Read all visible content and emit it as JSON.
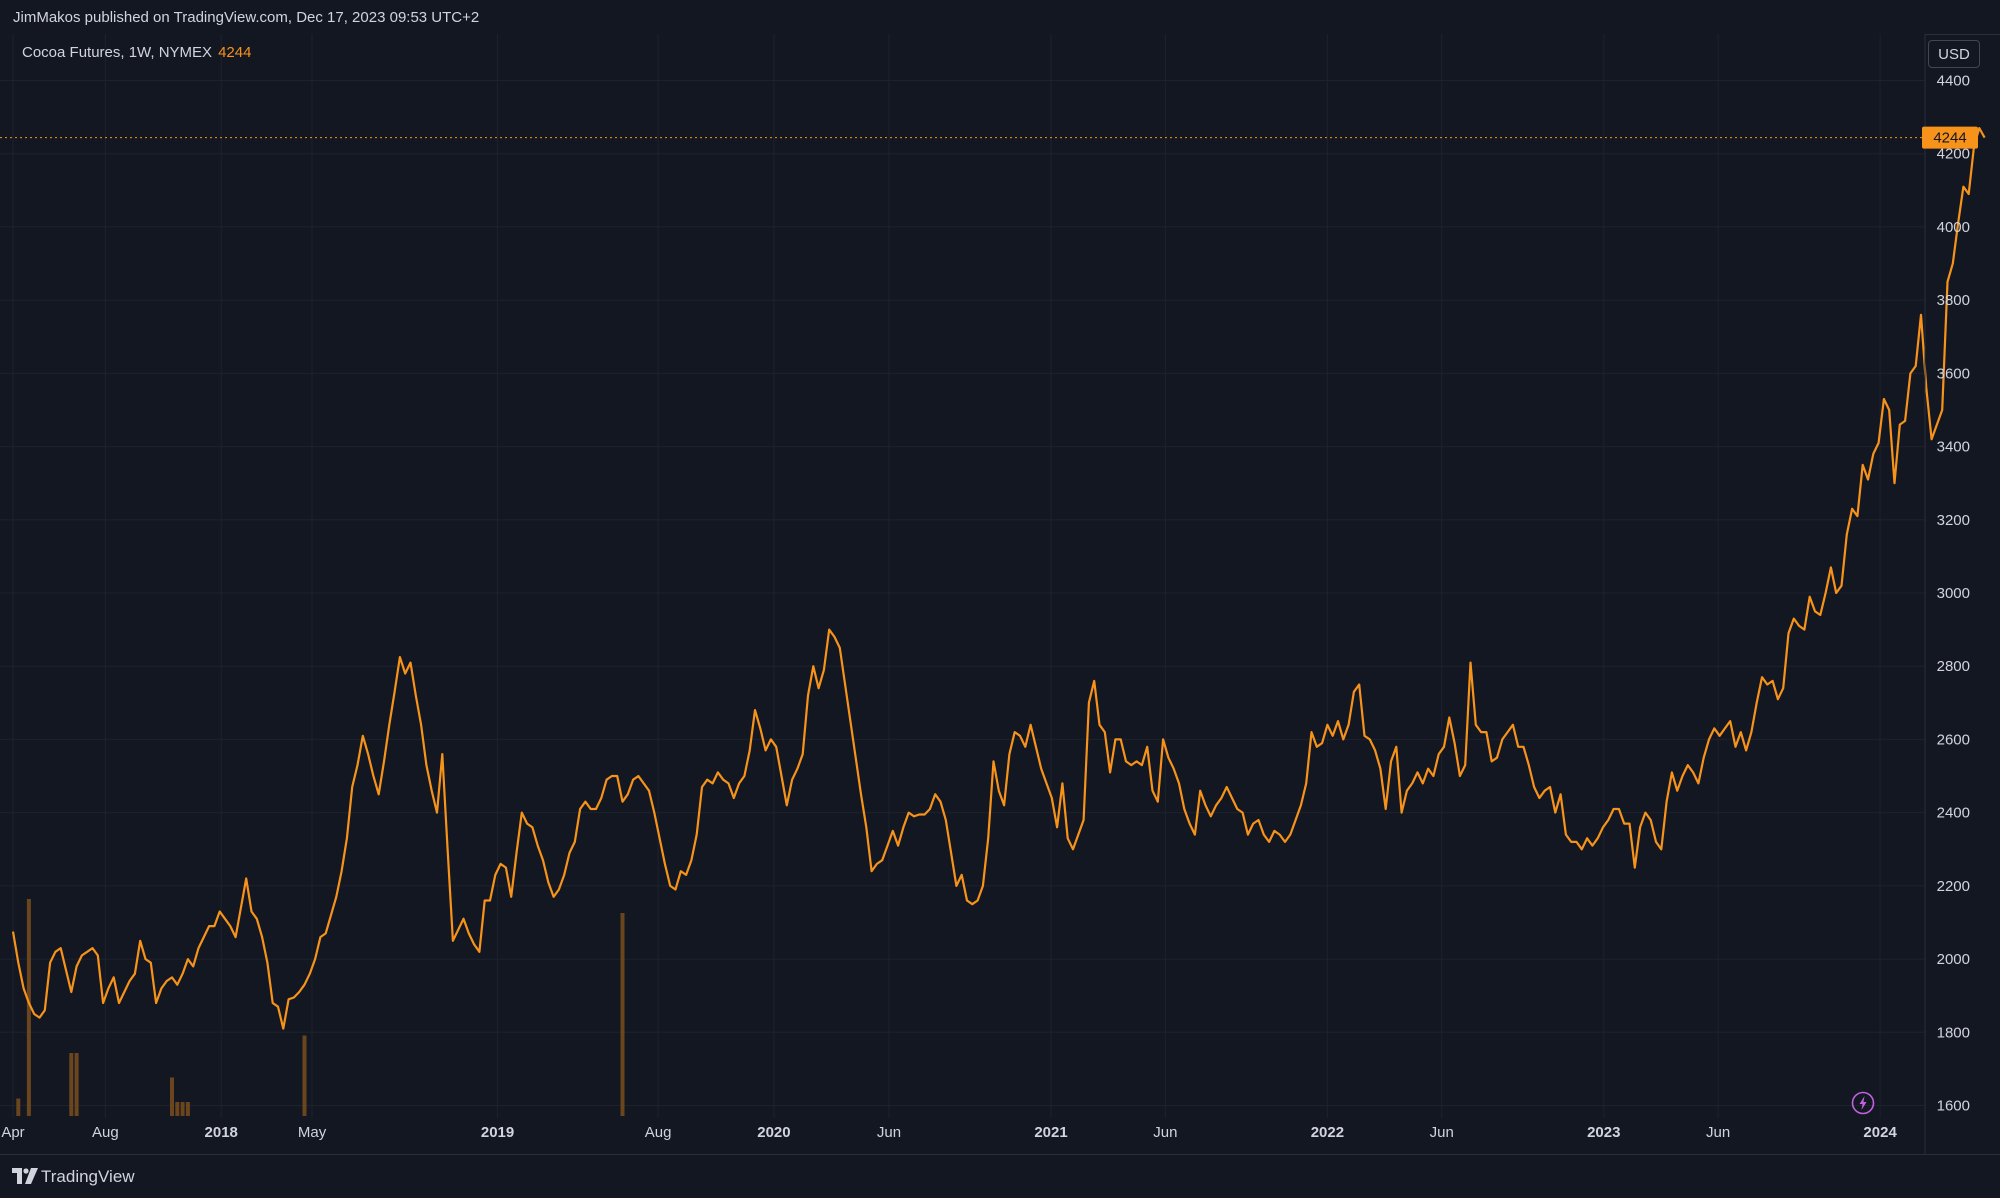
{
  "header": {
    "publish_text": "JimMakos published on TradingView.com, Dec 17, 2023 09:53 UTC+2"
  },
  "legend": {
    "symbol": "Cocoa Futures, 1W, NYMEX",
    "last_price": "4244"
  },
  "currency": "USD",
  "footer": {
    "brand": "TradingView",
    "logo_icon": "tradingview-logo-icon"
  },
  "icons": {
    "bolt": "lightning-bolt-icon"
  },
  "colors": {
    "background": "#131722",
    "grid": "#1e222d",
    "line": "#f7931a",
    "price_tag": "#f7931a",
    "text": "#d1d4dc",
    "volume": "#7a4e1c",
    "bolt": "#c061e0"
  },
  "chart_data": {
    "type": "line",
    "series": [
      {
        "name": "Cocoa Futures, 1W, NYMEX",
        "x_start": "2017-04-01",
        "interval": "1W",
        "values": [
          2075,
          1990,
          1920,
          1880,
          1850,
          1840,
          1860,
          1990,
          2020,
          2030,
          1970,
          1910,
          1980,
          2010,
          2020,
          2030,
          2010,
          1880,
          1920,
          1950,
          1880,
          1910,
          1940,
          1960,
          2050,
          2000,
          1990,
          1880,
          1920,
          1940,
          1950,
          1930,
          1960,
          2000,
          1980,
          2030,
          2060,
          2090,
          2090,
          2130,
          2110,
          2090,
          2060,
          2140,
          2220,
          2130,
          2110,
          2060,
          1990,
          1880,
          1870,
          1810,
          1890,
          1895,
          1910,
          1930,
          1960,
          2000,
          2060,
          2070,
          2120,
          2170,
          2240,
          2330,
          2470,
          2530,
          2610,
          2560,
          2500,
          2450,
          2540,
          2640,
          2730,
          2825,
          2780,
          2810,
          2720,
          2640,
          2530,
          2460,
          2400,
          2560,
          2300,
          2050,
          2080,
          2110,
          2070,
          2040,
          2020,
          2160,
          2160,
          2230,
          2260,
          2250,
          2170,
          2290,
          2400,
          2370,
          2360,
          2310,
          2270,
          2210,
          2170,
          2190,
          2230,
          2290,
          2320,
          2410,
          2430,
          2410,
          2410,
          2440,
          2490,
          2500,
          2500,
          2430,
          2450,
          2490,
          2500,
          2480,
          2460,
          2400,
          2330,
          2260,
          2200,
          2190,
          2240,
          2230,
          2270,
          2340,
          2470,
          2490,
          2480,
          2510,
          2490,
          2480,
          2440,
          2480,
          2500,
          2570,
          2680,
          2630,
          2570,
          2600,
          2580,
          2500,
          2420,
          2490,
          2520,
          2560,
          2720,
          2800,
          2740,
          2790,
          2900,
          2880,
          2850,
          2750,
          2650,
          2550,
          2450,
          2360,
          2240,
          2260,
          2270,
          2310,
          2350,
          2310,
          2360,
          2400,
          2390,
          2395,
          2395,
          2410,
          2450,
          2430,
          2380,
          2290,
          2200,
          2230,
          2160,
          2150,
          2160,
          2200,
          2330,
          2540,
          2460,
          2420,
          2560,
          2620,
          2610,
          2580,
          2640,
          2580,
          2520,
          2480,
          2440,
          2360,
          2480,
          2330,
          2300,
          2340,
          2380,
          2700,
          2760,
          2640,
          2620,
          2510,
          2600,
          2600,
          2540,
          2530,
          2540,
          2530,
          2580,
          2460,
          2430,
          2600,
          2550,
          2520,
          2480,
          2410,
          2370,
          2340,
          2460,
          2420,
          2390,
          2420,
          2440,
          2470,
          2440,
          2410,
          2400,
          2340,
          2370,
          2380,
          2340,
          2320,
          2350,
          2340,
          2320,
          2340,
          2380,
          2420,
          2480,
          2620,
          2580,
          2590,
          2640,
          2610,
          2650,
          2600,
          2640,
          2730,
          2750,
          2610,
          2600,
          2570,
          2520,
          2410,
          2540,
          2580,
          2400,
          2460,
          2480,
          2510,
          2480,
          2520,
          2500,
          2560,
          2580,
          2660,
          2590,
          2500,
          2530,
          2810,
          2640,
          2620,
          2620,
          2540,
          2550,
          2600,
          2620,
          2640,
          2580,
          2580,
          2530,
          2470,
          2440,
          2460,
          2470,
          2400,
          2450,
          2340,
          2320,
          2320,
          2300,
          2330,
          2310,
          2330,
          2360,
          2380,
          2410,
          2410,
          2370,
          2370,
          2250,
          2360,
          2400,
          2380,
          2320,
          2300,
          2430,
          2510,
          2460,
          2500,
          2530,
          2510,
          2480,
          2550,
          2600,
          2630,
          2610,
          2630,
          2650,
          2580,
          2620,
          2570,
          2620,
          2700,
          2770,
          2750,
          2760,
          2710,
          2740,
          2890,
          2930,
          2910,
          2900,
          2990,
          2950,
          2940,
          3000,
          3070,
          3000,
          3020,
          3160,
          3230,
          3210,
          3350,
          3310,
          3380,
          3410,
          3530,
          3500,
          3300,
          3460,
          3470,
          3600,
          3620,
          3760,
          3560,
          3420,
          3460,
          3500,
          3850,
          3900,
          4010,
          4110,
          4090,
          4220,
          4270,
          4244
        ]
      }
    ],
    "x_tick_labels": [
      "Apr",
      "Aug",
      "2018",
      "May",
      "2019",
      "Aug",
      "2020",
      "Jun",
      "2021",
      "Jun",
      "2022",
      "Jun",
      "2023",
      "Jun",
      "2024"
    ],
    "x_tick_dates": [
      "2017-04-01",
      "2017-08-01",
      "2018-01-01",
      "2018-05-01",
      "2019-01-01",
      "2019-08-01",
      "2020-01-01",
      "2020-06-01",
      "2021-01-01",
      "2021-06-01",
      "2022-01-01",
      "2022-06-01",
      "2023-01-01",
      "2023-06-01",
      "2024-01-01"
    ],
    "y_ticks": [
      1600,
      1800,
      2000,
      2200,
      2400,
      2600,
      2800,
      3000,
      3200,
      3400,
      3600,
      3800,
      4000,
      4200,
      4400
    ],
    "ylim": [
      1570,
      4560
    ],
    "last_value": 4244,
    "grid": true,
    "volume": [
      {
        "date": "2017-04-08",
        "value": 0.05
      },
      {
        "date": "2017-04-22",
        "value": 0.62
      },
      {
        "date": "2017-06-17",
        "value": 0.18
      },
      {
        "date": "2017-06-24",
        "value": 0.18
      },
      {
        "date": "2017-10-28",
        "value": 0.11
      },
      {
        "date": "2017-11-04",
        "value": 0.04
      },
      {
        "date": "2017-11-11",
        "value": 0.04
      },
      {
        "date": "2017-11-18",
        "value": 0.04
      },
      {
        "date": "2018-04-21",
        "value": 0.23
      },
      {
        "date": "2019-06-15",
        "value": 0.58
      }
    ]
  }
}
